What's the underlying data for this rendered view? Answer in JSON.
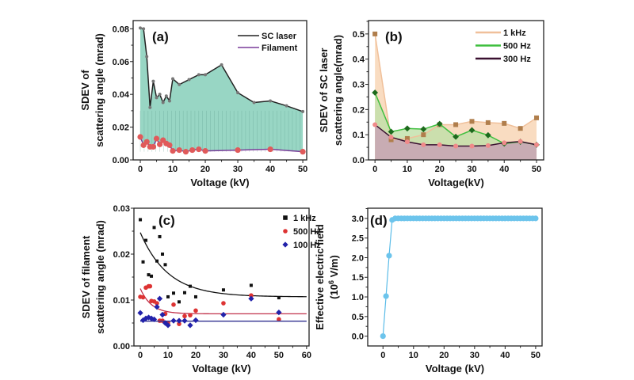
{
  "chart_data": [
    {
      "panel": "(a)",
      "type": "line",
      "xlabel": "Voltage (kV)",
      "ylabel": [
        "SDEV of",
        "scattering angle (mrad)"
      ],
      "xlim": [
        -2.2,
        51.2
      ],
      "ylim": [
        0,
        0.085
      ],
      "xticks": [
        0,
        10,
        20,
        30,
        40,
        50
      ],
      "xtick_labels": [
        "0",
        "10",
        "20",
        "30",
        "40",
        "50"
      ],
      "yticks": [
        0,
        0.02,
        0.04,
        0.06,
        0.08
      ],
      "ytick_labels": [
        "0.00",
        "0.02",
        "0.04",
        "0.06",
        "0.08"
      ],
      "legend": "top-right",
      "series": [
        {
          "name": "SC laser",
          "color": "#222222",
          "marker": "circle",
          "marker_color": "#777777",
          "x": [
            0,
            1,
            2,
            3,
            4,
            5,
            6,
            7,
            8,
            9,
            10,
            12,
            15,
            18,
            20,
            25,
            30,
            35,
            40,
            45,
            50
          ],
          "y": [
            0.0805,
            0.08,
            0.063,
            0.032,
            0.048,
            0.038,
            0.04,
            0.035,
            0.039,
            0.036,
            0.0495,
            0.046,
            0.049,
            0.052,
            0.052,
            0.058,
            0.041,
            0.035,
            0.036,
            0.033,
            0.0295
          ]
        },
        {
          "name": "Filament",
          "color": "#7a3c9a",
          "marker": "circle",
          "marker_color": "#e05a5a",
          "x": [
            0,
            1,
            2,
            3,
            4,
            5,
            6,
            7,
            8,
            9,
            10,
            12,
            14,
            16,
            18,
            20,
            30,
            40,
            50
          ],
          "y": [
            0.014,
            0.009,
            0.011,
            0.008,
            0.008,
            0.013,
            0.0095,
            0.012,
            0.01,
            0.009,
            0.0055,
            0.006,
            0.005,
            0.006,
            0.0065,
            0.0055,
            0.006,
            0.0065,
            0.005
          ]
        }
      ],
      "fill_color": "#86cfba"
    },
    {
      "panel": "(b)",
      "type": "area",
      "xlabel": "Voltage(kV)",
      "ylabel": [
        "SDEV of SC laser",
        "scattering angle(mrad)"
      ],
      "xlim": [
        -2,
        52.2
      ],
      "ylim": [
        0,
        0.553
      ],
      "xticks": [
        0,
        10,
        20,
        30,
        40,
        50
      ],
      "xtick_labels": [
        "0",
        "10",
        "20",
        "30",
        "40",
        "50"
      ],
      "yticks": [
        0,
        0.1,
        0.2,
        0.3,
        0.4,
        0.5
      ],
      "ytick_labels": [
        "0.0",
        "0.1",
        "0.2",
        "0.3",
        "0.4",
        "0.5"
      ],
      "legend": "top-right",
      "series": [
        {
          "name": "1 kHz",
          "color": "#f0c09a",
          "fill": "#f7d3b2",
          "marker": "square",
          "marker_color": "#b07e4c",
          "x": [
            0,
            5,
            10,
            15,
            20,
            25,
            30,
            35,
            40,
            45,
            50
          ],
          "y": [
            0.5,
            0.08,
            0.085,
            0.1,
            0.14,
            0.14,
            0.153,
            0.148,
            0.145,
            0.125,
            0.167
          ]
        },
        {
          "name": "500 Hz",
          "color": "#3fbf3f",
          "fill": "#bfe0a8",
          "marker": "diamond",
          "marker_color": "#1d6a1d",
          "x": [
            0,
            5,
            10,
            15,
            20,
            25,
            30,
            35,
            40,
            45,
            50
          ],
          "y": [
            0.267,
            0.112,
            0.125,
            0.122,
            0.143,
            0.092,
            0.118,
            0.098,
            0.065,
            0.072,
            0.06
          ]
        },
        {
          "name": "300 Hz",
          "color": "#3a1030",
          "fill": "#c8a6b4",
          "marker": "circle",
          "marker_color": "#f08a8a",
          "x": [
            0,
            5,
            10,
            15,
            20,
            25,
            30,
            35,
            40,
            45,
            50
          ],
          "y": [
            0.14,
            0.09,
            0.072,
            0.06,
            0.06,
            0.055,
            0.055,
            0.057,
            0.068,
            0.073,
            0.06
          ]
        }
      ]
    },
    {
      "panel": "(c)",
      "type": "scatter",
      "xlabel": "Voltage (kV)",
      "ylabel": [
        "SDEV of filament",
        "scattering angle (mrad)"
      ],
      "xlim": [
        -2.3,
        60.9
      ],
      "ylim": [
        0,
        0.03
      ],
      "xticks": [
        0,
        10,
        20,
        30,
        40,
        50,
        60
      ],
      "xtick_labels": [
        "0",
        "10",
        "20",
        "30",
        "40",
        "50",
        "60"
      ],
      "yticks": [
        0,
        0.01,
        0.02,
        0.03
      ],
      "ytick_labels": [
        "0.00",
        "0.01",
        "0.02",
        "0.03"
      ],
      "legend": "top-right",
      "series": [
        {
          "name": "1 kHz",
          "marker": "square",
          "marker_color": "#111111",
          "fit_color": "#111111",
          "fit": {
            "a": 0.0107,
            "b": 0.014,
            "t": 10
          },
          "x": [
            0,
            1,
            2,
            3,
            4,
            5,
            6,
            7,
            8,
            9,
            10,
            12,
            14,
            16,
            18,
            20,
            30,
            40,
            50
          ],
          "y": [
            0.0275,
            0.0183,
            0.023,
            0.0155,
            0.0152,
            0.0258,
            0.0185,
            0.0238,
            0.02,
            0.0177,
            0.0107,
            0.0115,
            0.0096,
            0.0116,
            0.013,
            0.0107,
            0.0122,
            0.0132,
            0.0105
          ]
        },
        {
          "name": "500 Hz",
          "marker": "circle",
          "marker_color": "#dd3333",
          "fit_color": "#c0304a",
          "fit": {
            "a": 0.007,
            "b": 0.0055,
            "t": 4
          },
          "x": [
            0,
            1,
            2,
            3,
            3.5,
            4,
            5,
            6,
            7,
            8,
            9,
            10,
            12,
            14,
            16,
            18,
            20,
            30,
            40,
            50
          ],
          "y": [
            0.0107,
            0.0106,
            0.0127,
            0.013,
            0.013,
            0.0098,
            0.0097,
            0.0093,
            0.0055,
            0.0055,
            0.007,
            0.005,
            0.009,
            0.0048,
            0.0065,
            0.0067,
            0.0077,
            0.0093,
            0.011,
            0.0058
          ]
        },
        {
          "name": "100 Hz",
          "marker": "diamond",
          "marker_color": "#2222aa",
          "fit_color": "#303090",
          "fit": {
            "a": 0.0054,
            "b": 0,
            "t": 1
          },
          "x": [
            0,
            1,
            2,
            3,
            4,
            5,
            6,
            7,
            8,
            9,
            10,
            12,
            14,
            16,
            18,
            20,
            30,
            40,
            50
          ],
          "y": [
            0.0072,
            0.0056,
            0.006,
            0.0062,
            0.006,
            0.0058,
            0.0085,
            0.0103,
            0.0068,
            0.005,
            0.0045,
            0.0055,
            0.0055,
            0.0055,
            0.0045,
            0.0056,
            0.0068,
            0.0103,
            0.0073
          ]
        }
      ]
    },
    {
      "panel": "(d)",
      "type": "line",
      "xlabel": "Voltage (kV)",
      "ylabel": [
        "Effective electric field",
        "(10",
        "6",
        " V/m)"
      ],
      "xlim": [
        -5,
        52.1
      ],
      "ylim": [
        -0.25,
        3.26
      ],
      "xticks": [
        0,
        10,
        20,
        30,
        40,
        50
      ],
      "xtick_labels": [
        "0",
        "10",
        "20",
        "30",
        "40",
        "50"
      ],
      "yticks": [
        0,
        0.5,
        1,
        1.5,
        2,
        2.5,
        3
      ],
      "ytick_labels": [
        "0.0",
        "0.5",
        "1.0",
        "1.5",
        "2.0",
        "2.5",
        "3.0"
      ],
      "series": [
        {
          "color": "#5bbce8",
          "marker": "circle",
          "marker_color": "#6cc4ec",
          "x": [
            0,
            1,
            2,
            3,
            4,
            5,
            6,
            7,
            8,
            9,
            10,
            11,
            12,
            13,
            14,
            15,
            16,
            17,
            18,
            19,
            20,
            21,
            22,
            23,
            24,
            25,
            26,
            27,
            28,
            29,
            30,
            31,
            32,
            33,
            34,
            35,
            36,
            37,
            38,
            39,
            40,
            41,
            42,
            43,
            44,
            45,
            46,
            47,
            48,
            49,
            50
          ],
          "y": [
            0,
            1.02,
            2.05,
            2.96,
            3,
            3,
            3,
            3,
            3,
            3,
            3,
            3,
            3,
            3,
            3,
            3,
            3,
            3,
            3,
            3,
            3,
            3,
            3,
            3,
            3,
            3,
            3,
            3,
            3,
            3,
            3,
            3,
            3,
            3,
            3,
            3,
            3,
            3,
            3,
            3,
            3,
            3,
            3,
            3,
            3,
            3,
            3,
            3,
            3,
            3,
            3
          ]
        }
      ]
    }
  ]
}
